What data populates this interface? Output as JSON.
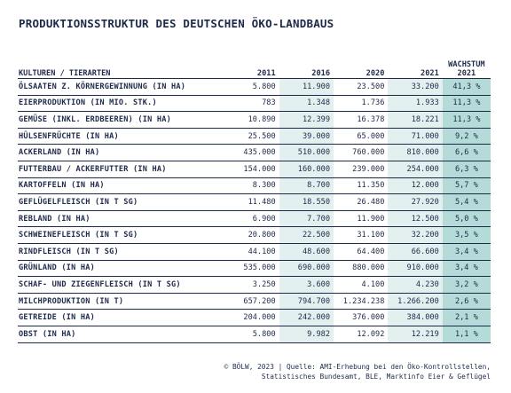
{
  "title": "PRODUKTIONSSTRUKTUR DES DEUTSCHEN ÖKO-LANDBAUS",
  "table": {
    "headers": {
      "label": "KULTUREN / TIERARTEN",
      "y2011": "2011",
      "y2016": "2016",
      "y2020": "2020",
      "y2021": "2021",
      "growth_line1": "WACHSTUM",
      "growth_line2": "2021"
    },
    "rows": [
      {
        "label": "ÖLSAATEN Z. KÖRNERGEWINNUNG (IN HA)",
        "y2011": "5.800",
        "y2016": "11.900",
        "y2020": "23.500",
        "y2021": "33.200",
        "growth": "41,3 %"
      },
      {
        "label": "EIERPRODUKTION (IN MIO. STK.)",
        "y2011": "783",
        "y2016": "1.348",
        "y2020": "1.736",
        "y2021": "1.933",
        "growth": "11,3 %"
      },
      {
        "label": "GEMÜSE (INKL. ERDBEEREN) (IN HA)",
        "y2011": "10.890",
        "y2016": "12.399",
        "y2020": "16.378",
        "y2021": "18.221",
        "growth": "11,3 %"
      },
      {
        "label": "HÜLSENFRÜCHTE (IN HA)",
        "y2011": "25.500",
        "y2016": "39.000",
        "y2020": "65.000",
        "y2021": "71.000",
        "growth": "9,2 %"
      },
      {
        "label": "ACKERLAND (IN HA)",
        "y2011": "435.000",
        "y2016": "510.000",
        "y2020": "760.000",
        "y2021": "810.000",
        "growth": "6,6 %"
      },
      {
        "label": "FUTTERBAU / ACKERFUTTER (IN HA)",
        "y2011": "154.000",
        "y2016": "160.000",
        "y2020": "239.000",
        "y2021": "254.000",
        "growth": "6,3 %"
      },
      {
        "label": "KARTOFFELN (IN HA)",
        "y2011": "8.300",
        "y2016": "8.700",
        "y2020": "11.350",
        "y2021": "12.000",
        "growth": "5,7 %"
      },
      {
        "label": "GEFLÜGELFLEISCH (IN T SG)",
        "y2011": "11.480",
        "y2016": "18.550",
        "y2020": "26.480",
        "y2021": "27.920",
        "growth": "5,4 %"
      },
      {
        "label": "REBLAND (IN HA)",
        "y2011": "6.900",
        "y2016": "7.700",
        "y2020": "11.900",
        "y2021": "12.500",
        "growth": "5,0 %"
      },
      {
        "label": "SCHWEINEFLEISCH (IN T SG)",
        "y2011": "20.800",
        "y2016": "22.500",
        "y2020": "31.100",
        "y2021": "32.200",
        "growth": "3,5 %"
      },
      {
        "label": "RINDFLEISCH (IN T SG)",
        "y2011": "44.100",
        "y2016": "48.600",
        "y2020": "64.400",
        "y2021": "66.600",
        "growth": "3,4 %"
      },
      {
        "label": "GRÜNLAND (IN HA)",
        "y2011": "535.000",
        "y2016": "690.000",
        "y2020": "880.000",
        "y2021": "910.000",
        "growth": "3,4 %"
      },
      {
        "label": "SCHAF- UND ZIEGENFLEISCH (IN T SG)",
        "y2011": "3.250",
        "y2016": "3.600",
        "y2020": "4.100",
        "y2021": "4.230",
        "growth": "3,2 %"
      },
      {
        "label": "MILCHPRODUKTION (IN T)",
        "y2011": "657.200",
        "y2016": "794.700",
        "y2020": "1.234.238",
        "y2021": "1.266.200",
        "growth": "2,6 %"
      },
      {
        "label": "GETREIDE (IN HA)",
        "y2011": "204.000",
        "y2016": "242.000",
        "y2020": "376.000",
        "y2021": "384.000",
        "growth": "2,1 %"
      },
      {
        "label": "OBST (IN HA)",
        "y2011": "5.800",
        "y2016": "9.982",
        "y2020": "12.092",
        "y2021": "12.219",
        "growth": "1,1 %"
      }
    ]
  },
  "footer": {
    "line1": "© BÖLW, 2023 | Quelle: AMI-Erhebung bei den Öko-Kontrollstellen,",
    "line2": "Statistisches Bundesamt, BLE, Marktinfo Eier & Geflügel"
  },
  "colors": {
    "text": "#1e2a4a",
    "shade": "#e3f0ef",
    "growth": "#b4dbd7"
  }
}
